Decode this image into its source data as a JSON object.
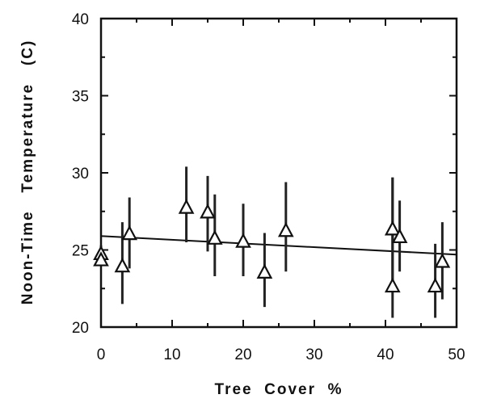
{
  "chart_data": {
    "type": "scatter",
    "title": "",
    "xlabel": "Tree  Cover  %",
    "ylabel": "Noon-Time   Temperature   (C)",
    "xlim": [
      0,
      50
    ],
    "ylim": [
      20,
      40
    ],
    "x_ticks": [
      0,
      10,
      20,
      30,
      40,
      50
    ],
    "y_ticks": [
      20,
      25,
      30,
      35,
      40
    ],
    "grid": false,
    "points": [
      {
        "x": 0,
        "y": 24.7,
        "err_low": 24.4,
        "err_high": 25.3
      },
      {
        "x": 0,
        "y": 24.3,
        "err_low": 24.0,
        "err_high": 24.8
      },
      {
        "x": 3,
        "y": 23.9,
        "err_low": 21.5,
        "err_high": 26.8
      },
      {
        "x": 4,
        "y": 26.0,
        "err_low": 23.8,
        "err_high": 28.4
      },
      {
        "x": 12,
        "y": 27.7,
        "err_low": 25.5,
        "err_high": 30.4
      },
      {
        "x": 15,
        "y": 27.4,
        "err_low": 24.9,
        "err_high": 29.8
      },
      {
        "x": 16,
        "y": 25.7,
        "err_low": 23.3,
        "err_high": 28.6
      },
      {
        "x": 20,
        "y": 25.5,
        "err_low": 23.3,
        "err_high": 28.0
      },
      {
        "x": 23,
        "y": 23.5,
        "err_low": 21.3,
        "err_high": 26.1
      },
      {
        "x": 26,
        "y": 26.2,
        "err_low": 23.6,
        "err_high": 29.4
      },
      {
        "x": 41,
        "y": 26.3,
        "err_low": 23.0,
        "err_high": 29.7
      },
      {
        "x": 41,
        "y": 22.6,
        "err_low": 20.6,
        "err_high": 29.7
      },
      {
        "x": 42,
        "y": 25.8,
        "err_low": 23.6,
        "err_high": 28.2
      },
      {
        "x": 47,
        "y": 22.6,
        "err_low": 20.6,
        "err_high": 25.4
      },
      {
        "x": 48,
        "y": 24.2,
        "err_low": 21.8,
        "err_high": 26.8
      }
    ],
    "trendline": {
      "x": [
        0,
        50
      ],
      "y": [
        25.9,
        24.7
      ]
    }
  }
}
